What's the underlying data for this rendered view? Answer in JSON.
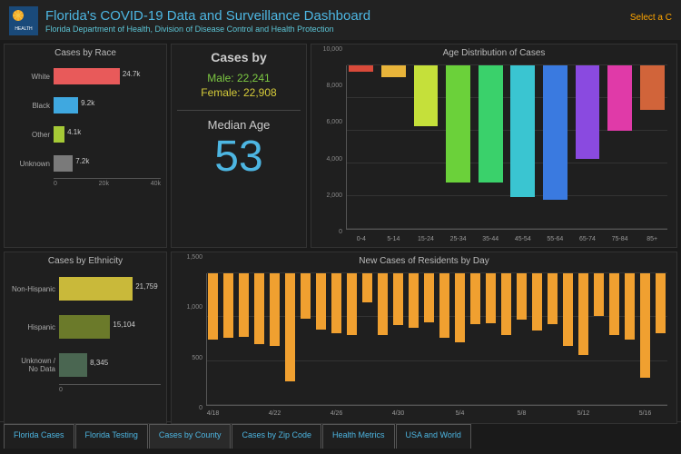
{
  "header": {
    "title": "Florida's COVID-19 Data and Surveillance Dashboard",
    "subtitle": "Florida Department of Health, Division of Disease Control and Health Protection",
    "select_link": "Select a C"
  },
  "stats": {
    "heading": "Cases by",
    "male_label": "Male: 22,241",
    "female_label": "Female: 22,908",
    "median_label": "Median Age",
    "median_value": "53"
  },
  "race_chart": {
    "type": "bar-horizontal",
    "title": "Cases by Race",
    "xmax": 40000,
    "xticks": [
      "0",
      "20k",
      "40k"
    ],
    "background_color": "#1f1f1f",
    "grid_color": "#555555",
    "label_fontsize": 8,
    "rows": [
      {
        "label": "White",
        "value": 24700,
        "display": "24.7k",
        "color": "#e85a5a"
      },
      {
        "label": "Black",
        "value": 9200,
        "display": "9.2k",
        "color": "#3fa8e0"
      },
      {
        "label": "Other",
        "value": 4100,
        "display": "4.1k",
        "color": "#a5c936"
      },
      {
        "label": "Unknown",
        "value": 7200,
        "display": "7.2k",
        "color": "#7a7a7a"
      }
    ]
  },
  "eth_chart": {
    "type": "bar-horizontal",
    "title": "Cases by Ethnicity",
    "xmax": 30000,
    "xticks": [
      "0",
      "",
      ""
    ],
    "background_color": "#1f1f1f",
    "rows": [
      {
        "label": "Non-Hispanic",
        "value": 21759,
        "display": "21,759",
        "color": "#c9b93a"
      },
      {
        "label": "Hispanic",
        "value": 15104,
        "display": "15,104",
        "color": "#6b7a2a"
      },
      {
        "label": "Unknown / No Data",
        "value": 8345,
        "display": "8,345",
        "color": "#4a6651"
      }
    ]
  },
  "age_chart": {
    "type": "bar",
    "title": "Age Distribution of Cases",
    "ymax": 10000,
    "ytick_step": 2000,
    "yticks": [
      "0",
      "2,000",
      "4,000",
      "6,000",
      "8,000",
      "10,000"
    ],
    "background_color": "#1f1f1f",
    "grid_color": "#333333",
    "bars": [
      {
        "x": "0-4",
        "value": 400,
        "color": "#d94a3a"
      },
      {
        "x": "5-14",
        "value": 700,
        "color": "#e8b43a"
      },
      {
        "x": "15-24",
        "value": 3700,
        "color": "#c5e03a"
      },
      {
        "x": "25-34",
        "value": 7100,
        "color": "#6bd13a"
      },
      {
        "x": "35-44",
        "value": 7100,
        "color": "#3ad16b"
      },
      {
        "x": "45-54",
        "value": 8000,
        "color": "#3ac5d1"
      },
      {
        "x": "55-64",
        "value": 8200,
        "color": "#3a7ae0"
      },
      {
        "x": "65-74",
        "value": 5700,
        "color": "#8a4ae0"
      },
      {
        "x": "75-84",
        "value": 4000,
        "color": "#e03aa8"
      },
      {
        "x": "85+",
        "value": 2700,
        "color": "#d1643a"
      }
    ]
  },
  "day_chart": {
    "type": "bar",
    "title": "New Cases of Residents by Day",
    "ymax": 1500,
    "ytick_step": 500,
    "yticks": [
      "0",
      "500",
      "1,000",
      "1,500"
    ],
    "background_color": "#1f1f1f",
    "bar_color": "#f0a030",
    "xticks_every": 4,
    "bars": [
      {
        "x": "4/18",
        "value": 750,
        "show_x": true
      },
      {
        "x": "4/19",
        "value": 730
      },
      {
        "x": "4/20",
        "value": 720
      },
      {
        "x": "4/21",
        "value": 800
      },
      {
        "x": "4/22",
        "value": 820,
        "show_x": true
      },
      {
        "x": "4/23",
        "value": 1220
      },
      {
        "x": "4/24",
        "value": 510
      },
      {
        "x": "4/25",
        "value": 640
      },
      {
        "x": "4/26",
        "value": 680,
        "show_x": true
      },
      {
        "x": "4/27",
        "value": 700
      },
      {
        "x": "4/28",
        "value": 330
      },
      {
        "x": "4/29",
        "value": 700
      },
      {
        "x": "4/30",
        "value": 590,
        "show_x": true
      },
      {
        "x": "5/1",
        "value": 620
      },
      {
        "x": "5/2",
        "value": 550
      },
      {
        "x": "5/3",
        "value": 730
      },
      {
        "x": "5/4",
        "value": 780,
        "show_x": true
      },
      {
        "x": "5/5",
        "value": 580
      },
      {
        "x": "5/6",
        "value": 560
      },
      {
        "x": "5/7",
        "value": 700
      },
      {
        "x": "5/8",
        "value": 520,
        "show_x": true
      },
      {
        "x": "5/9",
        "value": 650
      },
      {
        "x": "5/10",
        "value": 580
      },
      {
        "x": "5/11",
        "value": 820
      },
      {
        "x": "5/12",
        "value": 920,
        "show_x": true
      },
      {
        "x": "5/13",
        "value": 480
      },
      {
        "x": "5/14",
        "value": 700
      },
      {
        "x": "5/15",
        "value": 750
      },
      {
        "x": "5/16",
        "value": 1180,
        "show_x": true
      },
      {
        "x": "5/17",
        "value": 680
      }
    ]
  },
  "tabs": {
    "items": [
      {
        "label": "Florida Cases",
        "active": false
      },
      {
        "label": "Florida Testing",
        "active": false
      },
      {
        "label": "Cases by County",
        "active": true
      },
      {
        "label": "Cases by Zip Code",
        "active": false
      },
      {
        "label": "Health Metrics",
        "active": false
      },
      {
        "label": "USA and World",
        "active": false
      }
    ]
  },
  "colors": {
    "accent_blue": "#4db6e2",
    "bg": "#1a1a1a",
    "panel_bg": "#1f1f1f"
  }
}
